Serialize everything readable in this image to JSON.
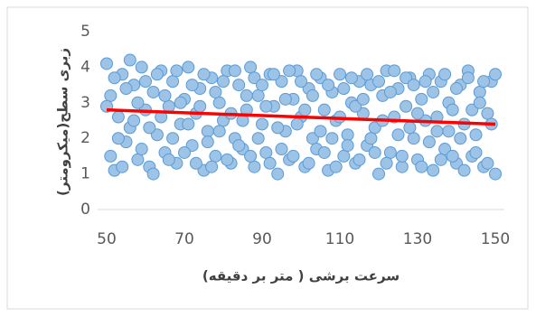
{
  "chart_data": {
    "type": "scatter",
    "xlabel": "سرعت برشی ( متر بر دقیقه)",
    "ylabel": "زبری سطح(میکرومتر)",
    "xlim": [
      50,
      150
    ],
    "xticks": [
      50,
      70,
      90,
      110,
      130,
      150
    ],
    "ylim": [
      0,
      5
    ],
    "yticks": [
      0,
      1,
      2,
      3,
      4,
      5
    ],
    "series": [
      {
        "mode": "markers",
        "color": "#9dc3e6",
        "edge": "#5b9bd5",
        "x": [
          50,
          51,
          52,
          53,
          54,
          55,
          56,
          57,
          58,
          59,
          60,
          61,
          62,
          63,
          64,
          65,
          66,
          67,
          68,
          69,
          70,
          71,
          72,
          73,
          74,
          75,
          76,
          77,
          78,
          79,
          80,
          81,
          82,
          83,
          84,
          85,
          86,
          87,
          88,
          89,
          90,
          91,
          92,
          93,
          94,
          95,
          96,
          97,
          98,
          99,
          100,
          101,
          102,
          103,
          104,
          105,
          106,
          107,
          108,
          109,
          110,
          111,
          112,
          113,
          114,
          115,
          116,
          117,
          118,
          119,
          120,
          121,
          122,
          123,
          124,
          125,
          126,
          127,
          128,
          129,
          130,
          131,
          132,
          133,
          134,
          135,
          136,
          137,
          138,
          139,
          140,
          141,
          142,
          143,
          144,
          145,
          146,
          147,
          148,
          149,
          150,
          50,
          51,
          52,
          53,
          54,
          55,
          56,
          57,
          58,
          59,
          60,
          61,
          62,
          63,
          64,
          65,
          66,
          67,
          68,
          69,
          70,
          71,
          72,
          73,
          74,
          75,
          76,
          77,
          78,
          79,
          80,
          81,
          82,
          83,
          84,
          85,
          86,
          87,
          88,
          89,
          90,
          91,
          92,
          93,
          94,
          95,
          96,
          97,
          98,
          99,
          100,
          101,
          102,
          103,
          104,
          105,
          106,
          107,
          108,
          109,
          110,
          111,
          112,
          113,
          114,
          115,
          116,
          117,
          118,
          119,
          120,
          121,
          122,
          123,
          124,
          125,
          126,
          127,
          128,
          129,
          130,
          131,
          132,
          133,
          134,
          135,
          136,
          137,
          138,
          139,
          140,
          141,
          142,
          143,
          144,
          145,
          146,
          147,
          148,
          149,
          150
        ],
        "y": [
          4.1,
          3.2,
          1.1,
          2.6,
          3.8,
          1.9,
          2.3,
          3.5,
          1.4,
          4.0,
          2.8,
          1.2,
          3.3,
          2.1,
          3.9,
          1.6,
          2.9,
          3.6,
          1.3,
          2.4,
          3.1,
          4.0,
          1.8,
          2.7,
          3.4,
          1.1,
          2.2,
          3.7,
          1.5,
          3.0,
          2.5,
          3.9,
          1.3,
          2.0,
          3.5,
          1.7,
          2.8,
          4.0,
          1.2,
          3.2,
          2.4,
          1.6,
          3.8,
          2.9,
          1.0,
          3.6,
          2.2,
          1.4,
          3.1,
          3.9,
          2.6,
          1.2,
          3.4,
          2.0,
          1.7,
          3.7,
          2.8,
          1.1,
          3.3,
          2.5,
          3.8,
          1.5,
          2.1,
          3.0,
          1.3,
          3.6,
          2.7,
          1.8,
          3.5,
          2.3,
          1.0,
          3.2,
          3.9,
          1.6,
          2.6,
          3.4,
          1.2,
          2.9,
          3.7,
          2.0,
          1.4,
          3.1,
          2.5,
          3.8,
          1.1,
          2.2,
          3.6,
          1.7,
          3.0,
          2.8,
          1.3,
          3.5,
          2.4,
          3.9,
          1.5,
          2.1,
          3.3,
          1.2,
          2.7,
          3.6,
          1.0,
          2.9,
          1.5,
          3.7,
          2.0,
          1.2,
          3.4,
          4.2,
          2.5,
          3.0,
          1.7,
          3.6,
          2.3,
          1.0,
          3.8,
          2.6,
          3.2,
          1.4,
          2.0,
          3.9,
          3.0,
          1.6,
          2.4,
          3.5,
          1.3,
          2.9,
          3.8,
          1.9,
          1.2,
          3.3,
          2.2,
          3.6,
          1.4,
          2.7,
          3.9,
          1.8,
          2.5,
          3.2,
          1.5,
          3.7,
          2.0,
          3.5,
          2.9,
          1.3,
          3.8,
          2.3,
          1.7,
          3.1,
          3.9,
          1.5,
          2.4,
          3.6,
          2.8,
          1.3,
          3.2,
          3.8,
          2.2,
          1.6,
          3.5,
          2.0,
          1.2,
          2.6,
          3.4,
          1.8,
          3.7,
          2.9,
          1.4,
          3.1,
          3.8,
          2.0,
          1.6,
          3.6,
          2.5,
          1.3,
          3.3,
          3.9,
          2.1,
          1.5,
          3.7,
          2.3,
          3.5,
          2.7,
          1.2,
          3.6,
          1.9,
          3.3,
          2.6,
          1.4,
          3.8,
          2.2,
          1.5,
          3.4,
          2.0,
          1.1,
          3.7,
          2.8,
          1.6,
          3.0,
          3.6,
          1.3,
          2.4,
          3.8
        ]
      },
      {
        "mode": "line",
        "color": "#ff0000",
        "x": [
          50,
          150
        ],
        "y": [
          2.8,
          2.4
        ]
      }
    ]
  }
}
